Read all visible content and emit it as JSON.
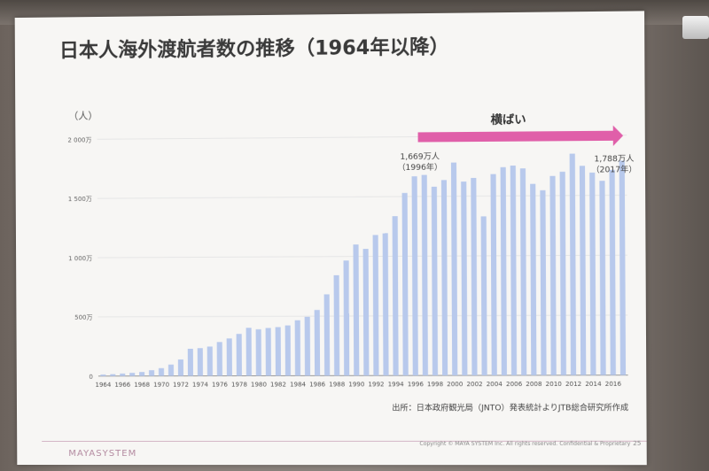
{
  "slide": {
    "title": "日本人海外渡航者数の推移（1964年以降）",
    "unit_label": "（人）",
    "trend_label": "横ばい",
    "annotation_1996_value": "1,669万人",
    "annotation_1996_year": "（1996年）",
    "annotation_2017_value": "1,788万人",
    "annotation_2017_year": "（2017年）",
    "source": "出所：日本政府観光局（JNTO）発表統計よりJTB総合研究所作成",
    "logo": "MAYASYSTEM",
    "copyright": "Copyright © MAYA SYSTEM Inc. All rights reserved. Confidential & Proprietary",
    "page_number": "25"
  },
  "colors": {
    "bar": "#b8c9ec",
    "arrow": "#e05fa9",
    "grid": "#e6e6e6"
  },
  "chart_data": {
    "type": "bar",
    "ylim": [
      0,
      2000
    ],
    "y_ticks": [
      {
        "value": 0,
        "label": "0"
      },
      {
        "value": 500,
        "label": "500万"
      },
      {
        "value": 1000,
        "label": "1 000万"
      },
      {
        "value": 1500,
        "label": "1 500万"
      },
      {
        "value": 2000,
        "label": "2 000万"
      }
    ],
    "x_tick_labels": [
      "1964",
      "1966",
      "1968",
      "1970",
      "1972",
      "1974",
      "1976",
      "1978",
      "1980",
      "1982",
      "1984",
      "1986",
      "1988",
      "1990",
      "1992",
      "1994",
      "1996",
      "1998",
      "2000",
      "2002",
      "2004",
      "2006",
      "2008",
      "2010",
      "2012",
      "2014",
      "2016"
    ],
    "categories": [
      "1964",
      "1965",
      "1966",
      "1967",
      "1968",
      "1969",
      "1970",
      "1971",
      "1972",
      "1973",
      "1974",
      "1975",
      "1976",
      "1977",
      "1978",
      "1979",
      "1980",
      "1981",
      "1982",
      "1983",
      "1984",
      "1985",
      "1986",
      "1987",
      "1988",
      "1989",
      "1990",
      "1991",
      "1992",
      "1993",
      "1994",
      "1995",
      "1996",
      "1997",
      "1998",
      "1999",
      "2000",
      "2001",
      "2002",
      "2003",
      "2004",
      "2005",
      "2006",
      "2007",
      "2008",
      "2009",
      "2010",
      "2011",
      "2012",
      "2013",
      "2014",
      "2015",
      "2016",
      "2017"
    ],
    "values": [
      13,
      16,
      21,
      27,
      34,
      49,
      66,
      96,
      139,
      229,
      234,
      247,
      285,
      315,
      353,
      404,
      391,
      402,
      409,
      423,
      466,
      495,
      552,
      683,
      843,
      966,
      1100,
      1063,
      1179,
      1193,
      1336,
      1530,
      1669,
      1680,
      1581,
      1636,
      1782,
      1622,
      1652,
      1330,
      1683,
      1740,
      1753,
      1729,
      1599,
      1545,
      1664,
      1699,
      1849,
      1747,
      1690,
      1621,
      1712,
      1788
    ]
  }
}
